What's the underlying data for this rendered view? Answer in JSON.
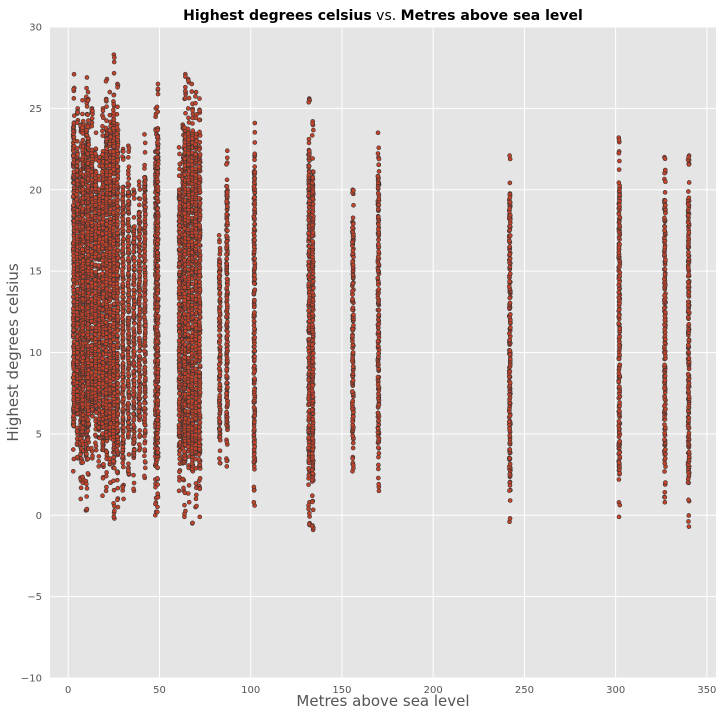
{
  "chart_data": {
    "type": "scatter",
    "title": {
      "part1": "Highest degrees celsius",
      "part2": " vs. ",
      "part3": "Metres above sea level"
    },
    "xlabel": "Metres above sea level",
    "ylabel": "Highest degrees celsius",
    "xlim": [
      -10,
      355
    ],
    "ylim": [
      -10,
      30
    ],
    "xticks": [
      0,
      50,
      100,
      150,
      200,
      250,
      300,
      350
    ],
    "yticks": [
      -10,
      -5,
      0,
      5,
      10,
      15,
      20,
      25,
      30
    ],
    "xtick_labels": [
      "0",
      "50",
      "100",
      "150",
      "200",
      "250",
      "300",
      "350"
    ],
    "ytick_labels": [
      "−10",
      "−5",
      "0",
      "5",
      "10",
      "15",
      "20",
      "25",
      "30"
    ],
    "grid": true,
    "legend": "none",
    "colors": {
      "background": "#e5e5e5",
      "grid": "#ffffff",
      "marker_fill": "#c4432b",
      "marker_edge": "#333333"
    },
    "series": [
      {
        "station_columns": [
          {
            "x": 3,
            "ymin": 2.7,
            "ymax": 27.1
          },
          {
            "x": 5,
            "ymin": 3.5,
            "ymax": 25.0
          },
          {
            "x": 7,
            "ymin": 1.0,
            "ymax": 24.0
          },
          {
            "x": 8,
            "ymin": 2.0,
            "ymax": 25.5
          },
          {
            "x": 10,
            "ymin": 0.3,
            "ymax": 26.9
          },
          {
            "x": 11,
            "ymin": 2.5,
            "ymax": 26.0
          },
          {
            "x": 13,
            "ymin": 3.5,
            "ymax": 25.0
          },
          {
            "x": 15,
            "ymin": 4.0,
            "ymax": 23.5
          },
          {
            "x": 17,
            "ymin": 3.0,
            "ymax": 22.0
          },
          {
            "x": 19,
            "ymin": 1.2,
            "ymax": 25.0
          },
          {
            "x": 21,
            "ymin": 1.5,
            "ymax": 26.8
          },
          {
            "x": 23,
            "ymin": 2.0,
            "ymax": 26.0
          },
          {
            "x": 25,
            "ymin": -0.2,
            "ymax": 28.3
          },
          {
            "x": 27,
            "ymin": 0.5,
            "ymax": 26.5
          },
          {
            "x": 30,
            "ymin": 1.0,
            "ymax": 22.5
          },
          {
            "x": 33,
            "ymin": 2.5,
            "ymax": 22.7
          },
          {
            "x": 36,
            "ymin": 1.5,
            "ymax": 20.0
          },
          {
            "x": 39,
            "ymin": 4.0,
            "ymax": 20.5
          },
          {
            "x": 42,
            "ymin": 2.3,
            "ymax": 23.4
          },
          {
            "x": 48,
            "ymin": 0.0,
            "ymax": 25.0
          },
          {
            "x": 49,
            "ymin": 0.2,
            "ymax": 26.5
          },
          {
            "x": 61,
            "ymin": 1.5,
            "ymax": 22.6
          },
          {
            "x": 63,
            "ymin": 1.5,
            "ymax": 24.0
          },
          {
            "x": 64,
            "ymin": -0.1,
            "ymax": 27.1
          },
          {
            "x": 66,
            "ymin": 0.8,
            "ymax": 26.8
          },
          {
            "x": 68,
            "ymin": -0.5,
            "ymax": 26.5
          },
          {
            "x": 70,
            "ymin": 0.5,
            "ymax": 26.0
          },
          {
            "x": 72,
            "ymin": -0.1,
            "ymax": 25.6
          },
          {
            "x": 83,
            "ymin": 3.2,
            "ymax": 17.2
          },
          {
            "x": 87,
            "ymin": 3.0,
            "ymax": 22.4
          },
          {
            "x": 102,
            "ymin": 0.6,
            "ymax": 24.1
          },
          {
            "x": 132,
            "ymin": -0.6,
            "ymax": 25.6
          },
          {
            "x": 134,
            "ymin": -0.9,
            "ymax": 24.2
          },
          {
            "x": 156,
            "ymin": 2.7,
            "ymax": 20.0
          },
          {
            "x": 170,
            "ymin": 1.5,
            "ymax": 23.5
          },
          {
            "x": 242,
            "ymin": -0.4,
            "ymax": 22.1
          },
          {
            "x": 302,
            "ymin": -0.1,
            "ymax": 23.2
          },
          {
            "x": 327,
            "ymin": 0.8,
            "ymax": 22.0
          },
          {
            "x": 340,
            "ymin": -0.7,
            "ymax": 22.1
          }
        ]
      }
    ]
  }
}
